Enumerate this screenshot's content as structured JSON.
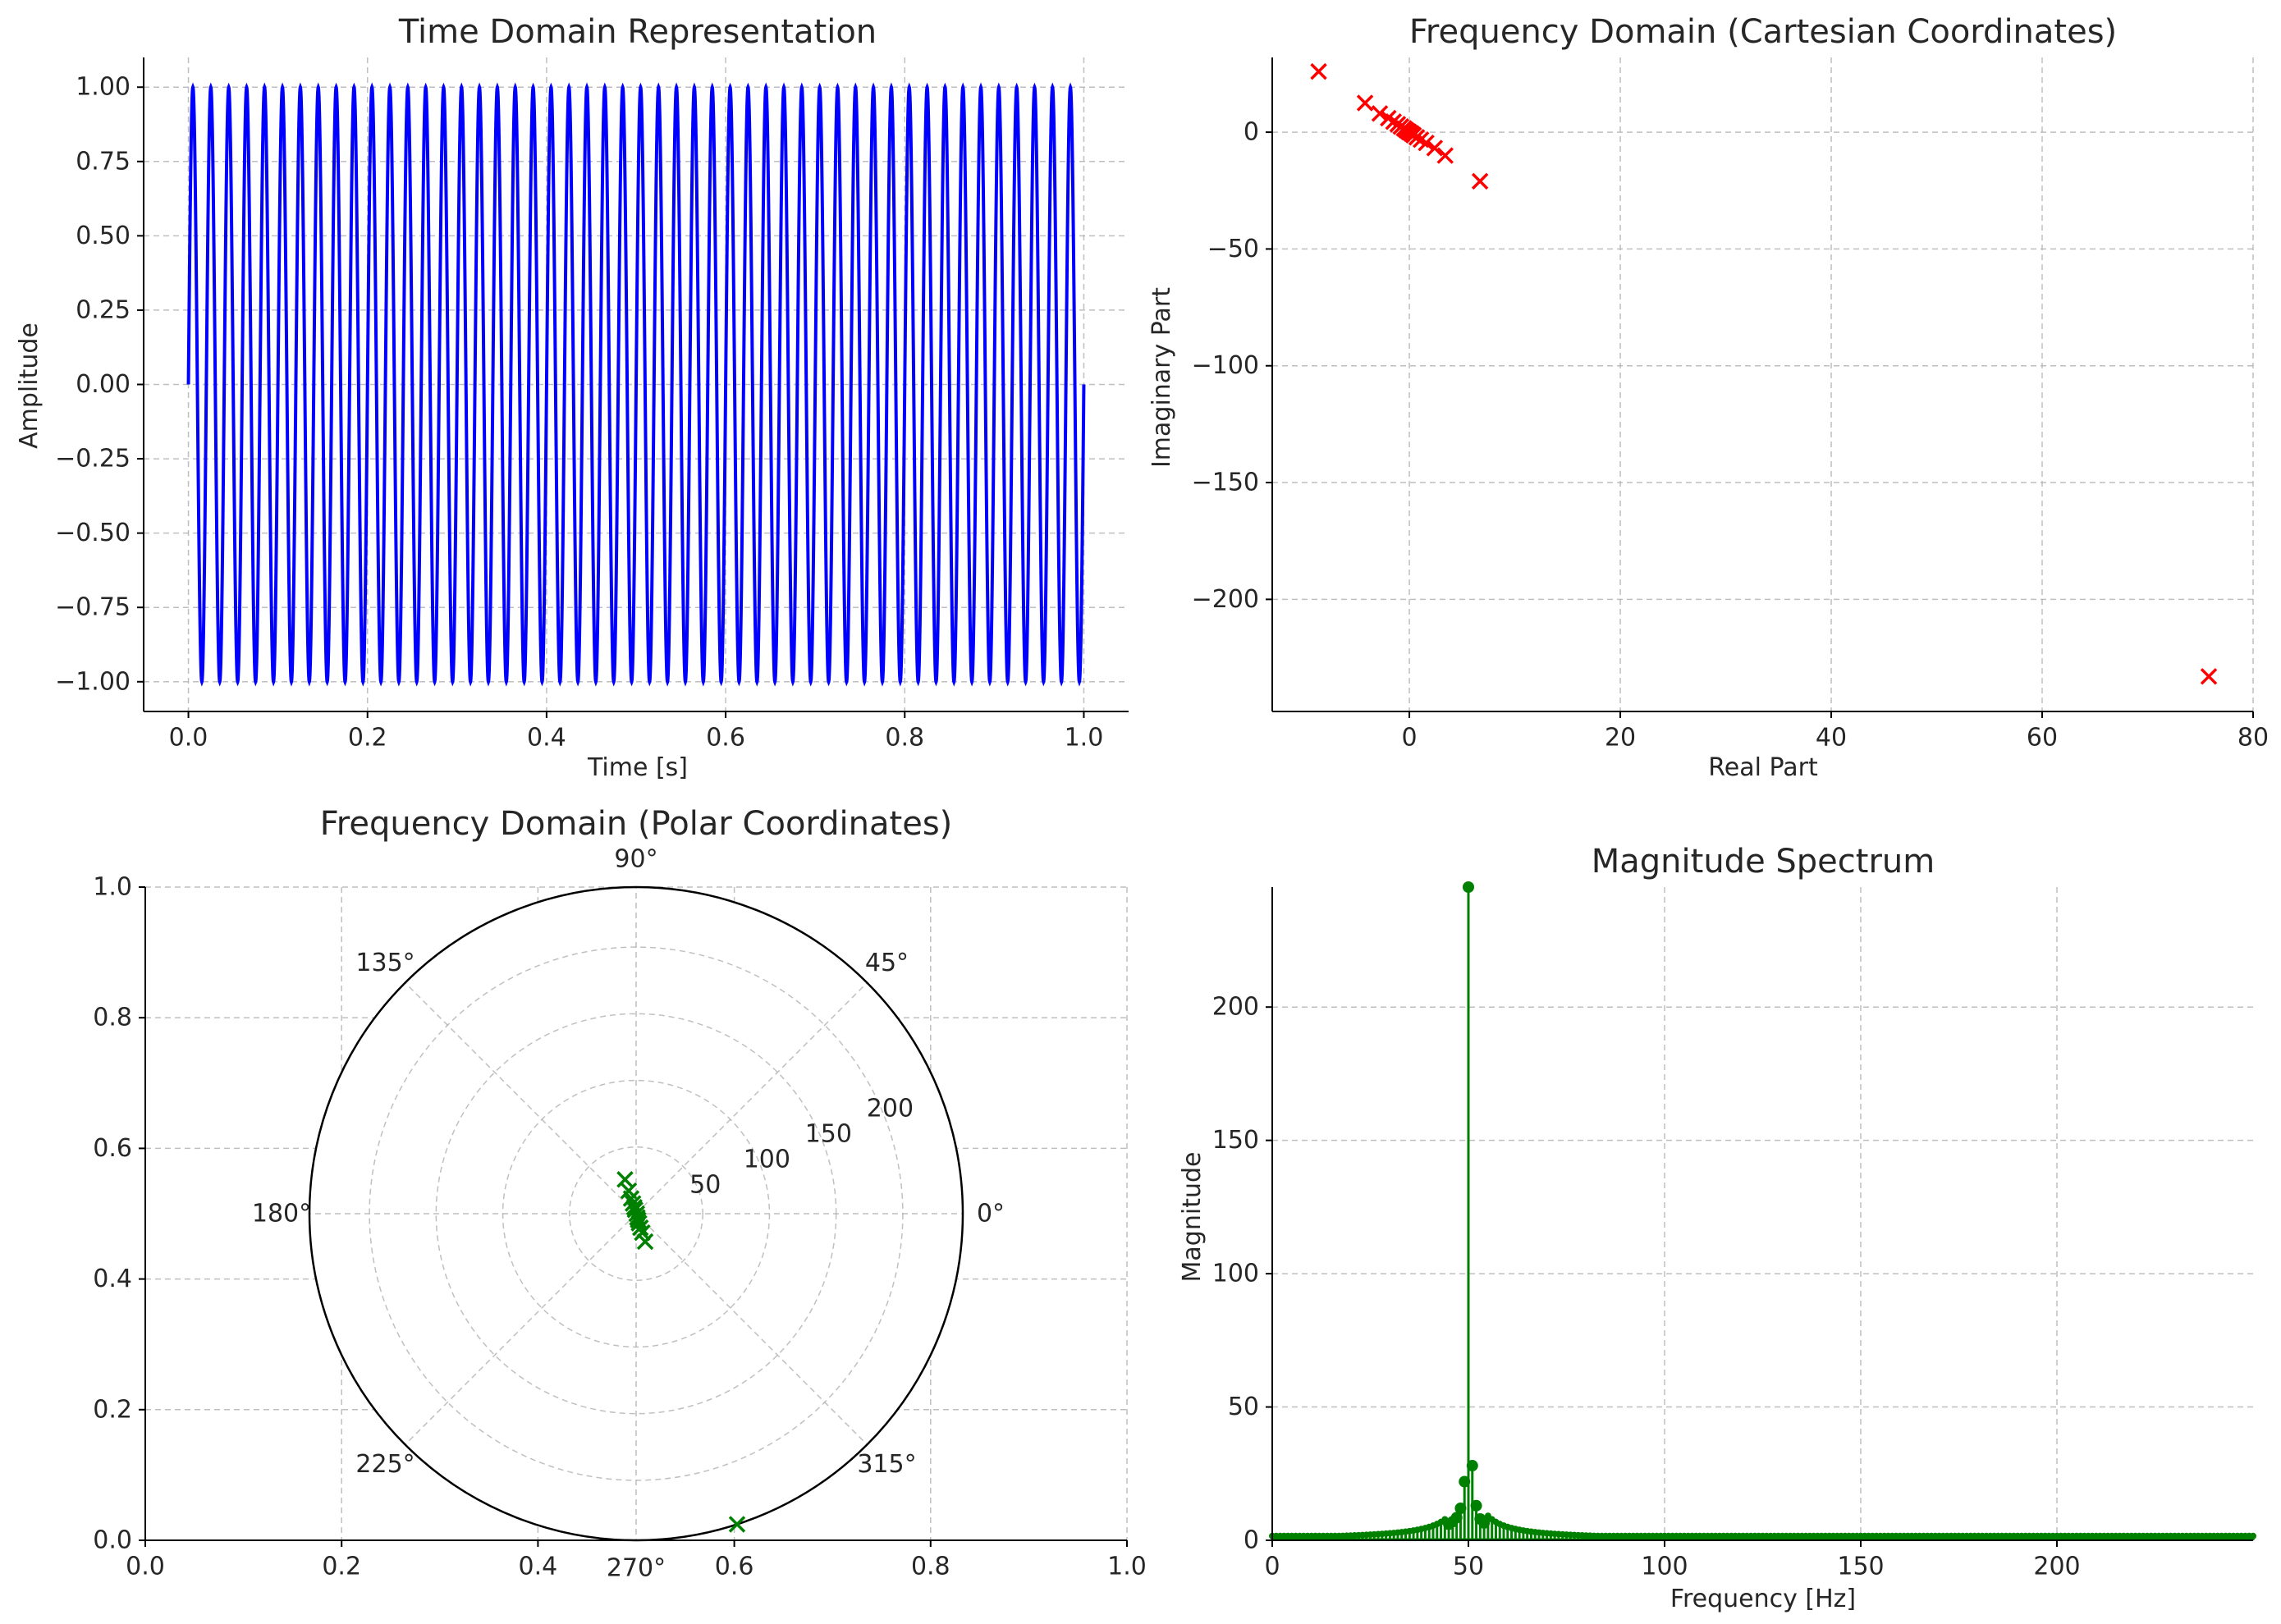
{
  "chart_data": [
    {
      "type": "line",
      "title": "Time Domain Representation",
      "xlabel": "Time [s]",
      "ylabel": "Amplitude",
      "xlim": [
        -0.05,
        1.05
      ],
      "ylim": [
        -1.1,
        1.1
      ],
      "xticks": [
        "0.0",
        "0.2",
        "0.4",
        "0.6",
        "0.8",
        "1.0"
      ],
      "yticks": [
        "1.00",
        "0.75",
        "0.50",
        "0.25",
        "0.00",
        "−0.25",
        "−0.50",
        "−0.75",
        "−1.00"
      ],
      "grid": true,
      "color": "#0000ff",
      "signal": {
        "function": "sine",
        "frequency_hz": 50,
        "amplitude": 1.0,
        "t_start": 0.0,
        "t_end": 1.0
      }
    },
    {
      "type": "scatter",
      "title": "Frequency Domain (Cartesian Coordinates)",
      "xlabel": "Real Part",
      "ylabel": "Imaginary Part",
      "xlim": [
        -13,
        80
      ],
      "ylim": [
        -248,
        32
      ],
      "xticks": [
        "0",
        "20",
        "40",
        "60",
        "80"
      ],
      "yticks": [
        "0",
        "−50",
        "−100",
        "−150",
        "−200"
      ],
      "grid": true,
      "marker": "x",
      "color": "#ff0000",
      "points": [
        [
          -8.6,
          26
        ],
        [
          -4.2,
          12.5
        ],
        [
          -2.8,
          8
        ],
        [
          -2,
          6
        ],
        [
          -1.5,
          4.5
        ],
        [
          -1.1,
          3.4
        ],
        [
          -0.8,
          2.4
        ],
        [
          -0.5,
          1.6
        ],
        [
          -0.3,
          0.9
        ],
        [
          -0.1,
          0.3
        ],
        [
          0,
          0
        ],
        [
          0.2,
          -0.6
        ],
        [
          0.4,
          -1.3
        ],
        [
          0.7,
          -2.2
        ],
        [
          1.1,
          -3.2
        ],
        [
          1.6,
          -4.6
        ],
        [
          2.4,
          -6.8
        ],
        [
          3.4,
          -10
        ],
        [
          6.7,
          -21
        ],
        [
          75.8,
          -233
        ]
      ]
    },
    {
      "type": "scatter",
      "subtype": "polar",
      "title": "Frequency Domain (Polar Coordinates)",
      "xlim": [
        0,
        1
      ],
      "ylim": [
        0,
        1
      ],
      "xticks": [
        "0.0",
        "0.2",
        "0.4",
        "0.6",
        "0.8",
        "1.0"
      ],
      "yticks": [
        "0.0",
        "0.2",
        "0.4",
        "0.6",
        "0.8",
        "1.0"
      ],
      "theta_labels": [
        "0°",
        "45°",
        "90°",
        "135°",
        "180°",
        "225°",
        "270°",
        "315°"
      ],
      "r_labels": [
        "50",
        "100",
        "150",
        "200"
      ],
      "rmax": 245,
      "grid": true,
      "marker": "x",
      "color": "#008000",
      "points": [
        {
          "theta_deg": 108,
          "r": 27
        },
        {
          "theta_deg": 108,
          "r": 18
        },
        {
          "theta_deg": 108,
          "r": 12
        },
        {
          "theta_deg": 107,
          "r": 8
        },
        {
          "theta_deg": 106,
          "r": 5
        },
        {
          "theta_deg": 105,
          "r": 3
        },
        {
          "theta_deg": 0,
          "r": 0.5
        },
        {
          "theta_deg": 288,
          "r": 3
        },
        {
          "theta_deg": 288,
          "r": 5
        },
        {
          "theta_deg": 287,
          "r": 7.5
        },
        {
          "theta_deg": 287,
          "r": 11
        },
        {
          "theta_deg": 288,
          "r": 15
        },
        {
          "theta_deg": 288,
          "r": 22
        },
        {
          "theta_deg": 288,
          "r": 245
        }
      ]
    },
    {
      "type": "stem",
      "title": "Magnitude Spectrum",
      "xlabel": "Frequency [Hz]",
      "ylabel": "Magnitude",
      "xlim": [
        0,
        250
      ],
      "ylim": [
        0,
        245
      ],
      "xticks": [
        "0",
        "50",
        "100",
        "150",
        "200"
      ],
      "yticks": [
        "0",
        "50",
        "100",
        "150",
        "200"
      ],
      "grid": true,
      "color": "#008000",
      "peaks": [
        {
          "x": 45,
          "y": 6
        },
        {
          "x": 46,
          "y": 7
        },
        {
          "x": 47,
          "y": 8.5
        },
        {
          "x": 48,
          "y": 12
        },
        {
          "x": 49,
          "y": 22
        },
        {
          "x": 50,
          "y": 245
        },
        {
          "x": 51,
          "y": 28
        },
        {
          "x": 52,
          "y": 13
        },
        {
          "x": 53,
          "y": 8
        },
        {
          "x": 54,
          "y": 6.5
        }
      ]
    }
  ]
}
